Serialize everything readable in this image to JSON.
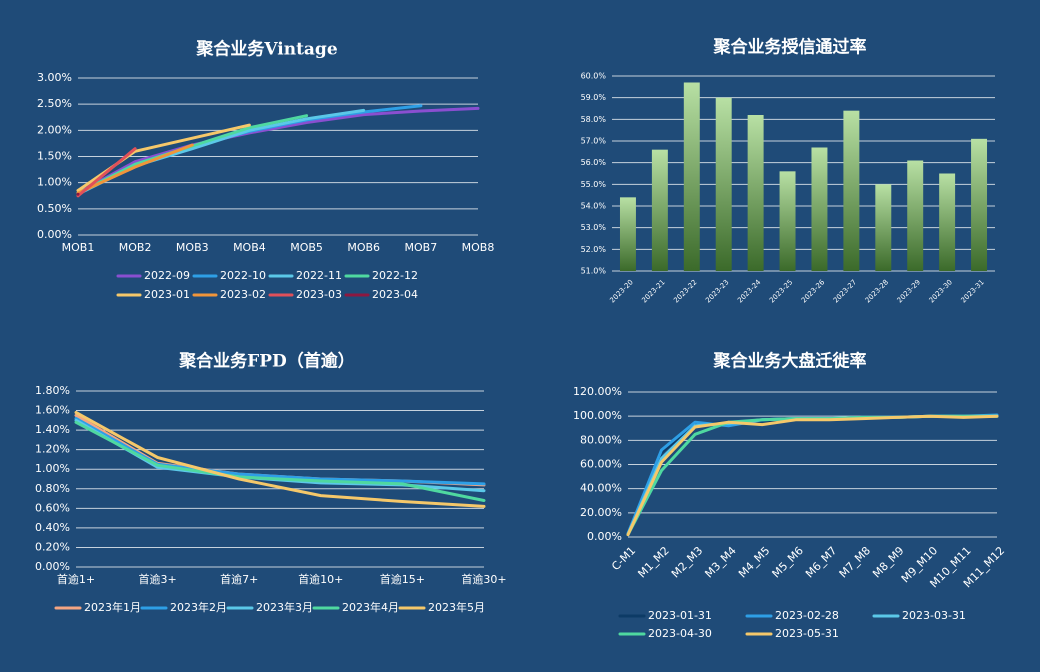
{
  "chart_data": [
    {
      "type": "line",
      "title": "聚合业务Vintage",
      "categories": [
        "MOB1",
        "MOB2",
        "MOB3",
        "MOB4",
        "MOB5",
        "MOB6",
        "MOB7",
        "MOB8"
      ],
      "ylim": [
        0,
        3
      ],
      "yticks": [
        {
          "value": 0,
          "label": "0.00%"
        },
        {
          "value": 0.5,
          "label": "0.50%"
        },
        {
          "value": 1,
          "label": "1.00%"
        },
        {
          "value": 1.5,
          "label": "1.50%"
        },
        {
          "value": 2,
          "label": "2.00%"
        },
        {
          "value": 2.5,
          "label": "2.50%"
        },
        {
          "value": 3,
          "label": "3.00%"
        }
      ],
      "grid": true,
      "series": [
        {
          "name": "2022-09",
          "color": "#8a4fd0",
          "values": [
            0.8,
            1.4,
            1.72,
            1.95,
            2.15,
            2.3,
            2.37,
            2.42
          ]
        },
        {
          "name": "2022-10",
          "color": "#2e9fe6",
          "values": [
            0.8,
            1.35,
            1.7,
            1.98,
            2.2,
            2.35,
            2.47,
            null
          ]
        },
        {
          "name": "2022-11",
          "color": "#5bc8e8",
          "values": [
            0.78,
            1.32,
            1.65,
            2.0,
            2.22,
            2.38,
            null,
            null
          ]
        },
        {
          "name": "2022-12",
          "color": "#4fd8a0",
          "values": [
            0.8,
            1.35,
            1.7,
            2.05,
            2.28,
            null,
            null,
            null
          ]
        },
        {
          "name": "2023-01",
          "color": "#f5c86a",
          "values": [
            0.85,
            1.6,
            1.85,
            2.1,
            null,
            null,
            null,
            null
          ]
        },
        {
          "name": "2023-02",
          "color": "#f0953a",
          "values": [
            0.8,
            1.3,
            1.72,
            null,
            null,
            null,
            null,
            null
          ]
        },
        {
          "name": "2023-03",
          "color": "#e0505a",
          "values": [
            0.75,
            1.65,
            null,
            null,
            null,
            null,
            null,
            null
          ]
        },
        {
          "name": "2023-04",
          "color": "#8c1840",
          "values": [
            0.78,
            null,
            null,
            null,
            null,
            null,
            null,
            null
          ]
        }
      ]
    },
    {
      "type": "bar",
      "title": "聚合业务授信通过率",
      "categories": [
        "2023-20",
        "2023-21",
        "2023-22",
        "2023-23",
        "2023-24",
        "2023-25",
        "2023-26",
        "2023-27",
        "2023-28",
        "2023-29",
        "2023-30",
        "2023-31"
      ],
      "values": [
        54.4,
        56.6,
        59.7,
        59.0,
        58.2,
        55.6,
        56.7,
        58.4,
        55.0,
        56.1,
        55.5,
        57.1
      ],
      "color": [
        "#b8e0a4",
        "#3b6a2a"
      ],
      "ylim": [
        51,
        60
      ],
      "yticks": [
        {
          "value": 51,
          "label": "51.0%"
        },
        {
          "value": 52,
          "label": "52.0%"
        },
        {
          "value": 53,
          "label": "53.0%"
        },
        {
          "value": 54,
          "label": "54.0%"
        },
        {
          "value": 55,
          "label": "55.0%"
        },
        {
          "value": 56,
          "label": "56.0%"
        },
        {
          "value": 57,
          "label": "57.0%"
        },
        {
          "value": 58,
          "label": "58.0%"
        },
        {
          "value": 59,
          "label": "59.0%"
        },
        {
          "value": 60,
          "label": "60.0%"
        }
      ],
      "grid": true
    },
    {
      "type": "line",
      "title": "聚合业务FPD（首逾）",
      "categories": [
        "首逾1+",
        "首逾3+",
        "首逾7+",
        "首逾10+",
        "首逾15+",
        "首逾30+"
      ],
      "ylim": [
        0,
        1.8
      ],
      "yticks": [
        {
          "value": 0,
          "label": "0.00%"
        },
        {
          "value": 0.2,
          "label": "0.20%"
        },
        {
          "value": 0.4,
          "label": "0.40%"
        },
        {
          "value": 0.6,
          "label": "0.60%"
        },
        {
          "value": 0.8,
          "label": "0.80%"
        },
        {
          "value": 1,
          "label": "1.00%"
        },
        {
          "value": 1.2,
          "label": "1.20%"
        },
        {
          "value": 1.4,
          "label": "1.40%"
        },
        {
          "value": 1.6,
          "label": "1.60%"
        },
        {
          "value": 1.8,
          "label": "1.80%"
        }
      ],
      "grid": true,
      "series": [
        {
          "name": "2023年1月",
          "color": "#f4a582",
          "values": [
            1.55,
            1.06,
            0.95,
            0.9,
            0.88,
            0.84
          ]
        },
        {
          "name": "2023年2月",
          "color": "#2e9fe6",
          "values": [
            1.52,
            1.05,
            0.95,
            0.9,
            0.88,
            0.85
          ]
        },
        {
          "name": "2023年3月",
          "color": "#5bc8e8",
          "values": [
            1.5,
            1.02,
            0.92,
            0.86,
            0.84,
            0.78
          ]
        },
        {
          "name": "2023年4月",
          "color": "#4fd8a0",
          "values": [
            1.48,
            1.04,
            0.92,
            0.88,
            0.85,
            0.68
          ]
        },
        {
          "name": "2023年5月",
          "color": "#f5c86a",
          "values": [
            1.58,
            1.12,
            0.9,
            0.73,
            0.67,
            0.62
          ]
        }
      ]
    },
    {
      "type": "line",
      "title": "聚合业务大盘迁徙率",
      "categories": [
        "C-M1",
        "M1_M2",
        "M2_M3",
        "M3_M4",
        "M4_M5",
        "M5_M6",
        "M6_M7",
        "M7_M8",
        "M8_M9",
        "M9_M10",
        "M10_M11",
        "M11_M12"
      ],
      "ylim": [
        0,
        120
      ],
      "yticks": [
        {
          "value": 0,
          "label": "0.00%"
        },
        {
          "value": 20,
          "label": "20.00%"
        },
        {
          "value": 40,
          "label": "40.00%"
        },
        {
          "value": 60,
          "label": "60.00%"
        },
        {
          "value": 80,
          "label": "80.00%"
        },
        {
          "value": 100,
          "label": "100.00%"
        },
        {
          "value": 120,
          "label": "120.00%"
        }
      ],
      "grid": true,
      "series": [
        {
          "name": "2023-01-31",
          "color": "#0d3b66",
          "values": [
            2,
            70,
            93,
            95,
            96,
            97,
            98,
            99,
            99,
            100,
            100,
            100
          ]
        },
        {
          "name": "2023-02-28",
          "color": "#2e9fe6",
          "values": [
            3,
            72,
            95,
            92,
            97,
            98,
            98,
            99,
            99,
            100,
            100,
            101
          ]
        },
        {
          "name": "2023-03-31",
          "color": "#5bc8e8",
          "values": [
            2,
            65,
            92,
            94,
            97,
            98,
            98,
            99,
            99,
            100,
            100,
            100
          ]
        },
        {
          "name": "2023-04-30",
          "color": "#4fd8a0",
          "values": [
            2,
            55,
            85,
            95,
            97,
            98,
            98,
            99,
            99,
            100,
            100,
            100
          ]
        },
        {
          "name": "2023-05-31",
          "color": "#f5c86a",
          "values": [
            2,
            62,
            91,
            95,
            93,
            97,
            97,
            98,
            99,
            100,
            99,
            100
          ]
        }
      ]
    }
  ]
}
